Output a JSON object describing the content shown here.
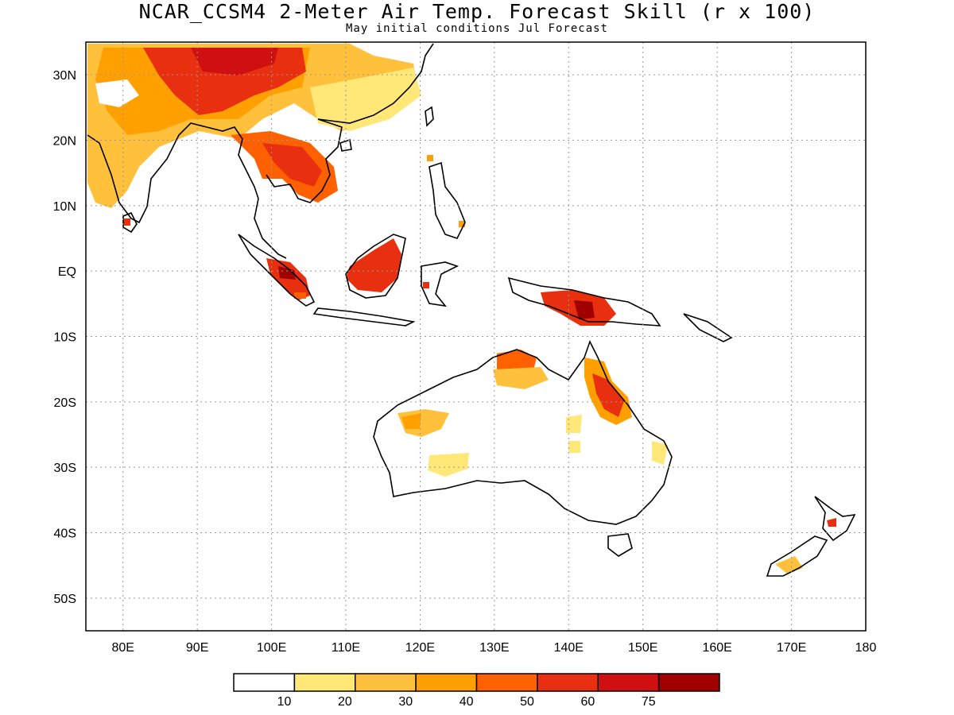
{
  "title": "NCAR_CCSM4 2-Meter Air Temp. Forecast Skill (r x 100)",
  "subtitle": "May initial conditions  Jul Forecast",
  "map": {
    "lon_range": [
      75,
      180
    ],
    "lat_range": [
      -55,
      35
    ],
    "x_ticks": [
      "80E",
      "90E",
      "100E",
      "110E",
      "120E",
      "130E",
      "140E",
      "150E",
      "160E",
      "170E",
      "180"
    ],
    "y_ticks": [
      "30N",
      "20N",
      "10N",
      "EQ",
      "10S",
      "20S",
      "30S",
      "40S",
      "50S"
    ],
    "grid": "dotted",
    "projection": "lat-lon"
  },
  "colorbar": {
    "colors": [
      "#ffffff",
      "#ffe878",
      "#ffc03c",
      "#ffa000",
      "#ff6000",
      "#e83010",
      "#d01010",
      "#a00000"
    ],
    "labels": [
      "10",
      "20",
      "30",
      "40",
      "50",
      "60",
      "75"
    ]
  },
  "shaded_regions": [
    {
      "region": "Tibet / South Asia",
      "level": "50-75"
    },
    {
      "region": "Indian subcontinent",
      "level": "20-40"
    },
    {
      "region": "Indochina",
      "level": "50-75"
    },
    {
      "region": "Southeast China",
      "level": "10-30"
    },
    {
      "region": "Borneo",
      "level": "50-60"
    },
    {
      "region": "Sumatra",
      "level": "50-75"
    },
    {
      "region": "New Guinea",
      "level": "50-75"
    },
    {
      "region": "Northern Australia",
      "level": "30-50"
    },
    {
      "region": "Queensland",
      "level": "30-60"
    },
    {
      "region": "Western Australia",
      "level": "10-30"
    },
    {
      "region": "South Island New Zealand",
      "level": "10-30"
    }
  ]
}
